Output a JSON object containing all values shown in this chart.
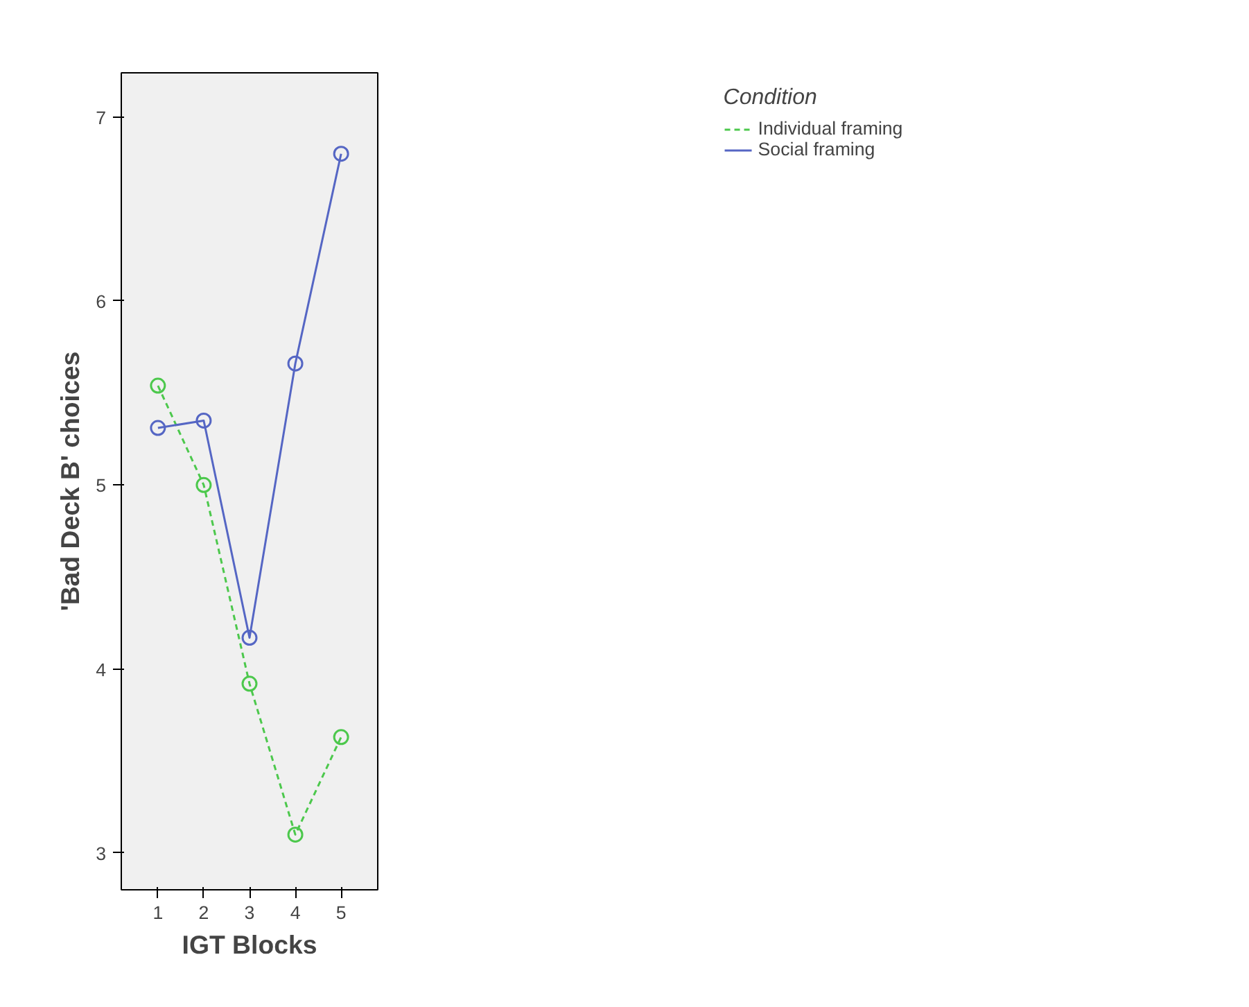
{
  "chart_data": {
    "type": "line",
    "xlabel": "IGT Blocks",
    "ylabel": "'Bad Deck B' choices",
    "legend_title": "Condition",
    "x": [
      1,
      2,
      3,
      4,
      5
    ],
    "series": [
      {
        "name": "Individual framing",
        "color": "#4cc84c",
        "line_style": "dashed",
        "values": [
          5.54,
          5.0,
          3.92,
          3.1,
          3.63
        ]
      },
      {
        "name": "Social framing",
        "color": "#5566c4",
        "line_style": "solid",
        "values": [
          5.31,
          5.35,
          4.17,
          5.66,
          6.8
        ]
      }
    ],
    "xlim": [
      0.2,
      5.8
    ],
    "xticks": [
      1,
      2,
      3,
      4,
      5
    ],
    "ylim": [
      2.8,
      7.24
    ],
    "yticks": [
      3,
      4,
      5,
      6,
      7
    ],
    "grid": false,
    "legend": "top right",
    "marker": "circle"
  }
}
